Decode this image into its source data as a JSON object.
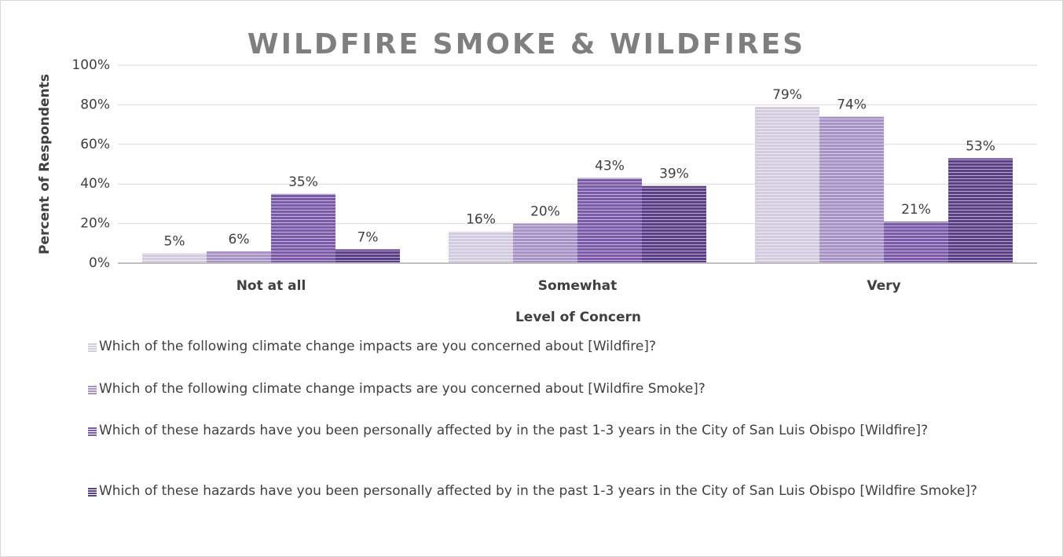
{
  "chart_data": {
    "type": "bar",
    "title": "WILDFIRE SMOKE & WILDFIRES",
    "x_label": "Level of Concern",
    "y_label": "Percent of Respondents",
    "categories": [
      "Not at all",
      "Somewhat",
      "Very"
    ],
    "series": [
      {
        "name": "Which of the following climate change impacts are you concerned about [Wildfire]?",
        "color": "#d3cbe0",
        "values": [
          5,
          16,
          79
        ],
        "value_labels": [
          "5%",
          "16%",
          "79%"
        ]
      },
      {
        "name": "Which of the following climate change impacts are you concerned about [Wildfire Smoke]?",
        "color": "#a893c6",
        "values": [
          6,
          20,
          74
        ],
        "value_labels": [
          "6%",
          "20%",
          "74%"
        ]
      },
      {
        "name": "Which of these hazards have you been personally affected by in the past 1-3 years in the City of San Luis Obispo [Wildfire]?",
        "color": "#7b5ba8",
        "values": [
          35,
          43,
          21
        ],
        "value_labels": [
          "35%",
          "43%",
          "21%"
        ]
      },
      {
        "name": "Which of these hazards have you been personally affected by in the past 1-3 years in the City of San Luis Obispo [Wildfire Smoke]?",
        "color": "#5a3e86",
        "values": [
          7,
          39,
          53
        ],
        "value_labels": [
          "7%",
          "39%",
          "53%"
        ]
      }
    ],
    "ylim": [
      0,
      100
    ],
    "yticks": [
      {
        "value": 0,
        "label": "0%"
      },
      {
        "value": 20,
        "label": "20%"
      },
      {
        "value": 40,
        "label": "40%"
      },
      {
        "value": 60,
        "label": "60%"
      },
      {
        "value": 80,
        "label": "80%"
      },
      {
        "value": 100,
        "label": "100%"
      }
    ],
    "grid": true
  }
}
